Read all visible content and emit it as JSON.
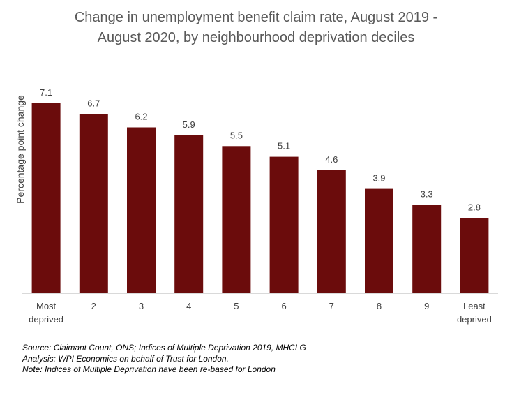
{
  "chart_data": {
    "type": "bar",
    "title_lines": [
      "Change in unemployment  benefit claim rate, August 2019 -",
      "August 2020, by neighbourhood deprivation deciles"
    ],
    "ylabel": "Percentage point change",
    "xlabel": "",
    "categories": [
      [
        "Most",
        "deprived"
      ],
      [
        "2"
      ],
      [
        "3"
      ],
      [
        "4"
      ],
      [
        "5"
      ],
      [
        "6"
      ],
      [
        "7"
      ],
      [
        "8"
      ],
      [
        "9"
      ],
      [
        "Least",
        "deprived"
      ]
    ],
    "values": [
      7.1,
      6.7,
      6.2,
      5.9,
      5.5,
      5.1,
      4.6,
      3.9,
      3.3,
      2.8
    ],
    "value_labels": [
      "7.1",
      "6.7",
      "6.2",
      "5.9",
      "5.5",
      "5.1",
      "4.6",
      "3.9",
      "3.3",
      "2.8"
    ],
    "ylim": [
      0,
      7.5
    ],
    "grid": false,
    "bar_color": "#6B0C0C"
  },
  "notes": [
    "Source: Claimant Count, ONS; Indices of Multiple Deprivation 2019, MHCLG",
    "Analysis: WPI Economics on behalf of Trust for London.",
    "Note: Indices of Multiple Deprivation have been re-based for London"
  ]
}
